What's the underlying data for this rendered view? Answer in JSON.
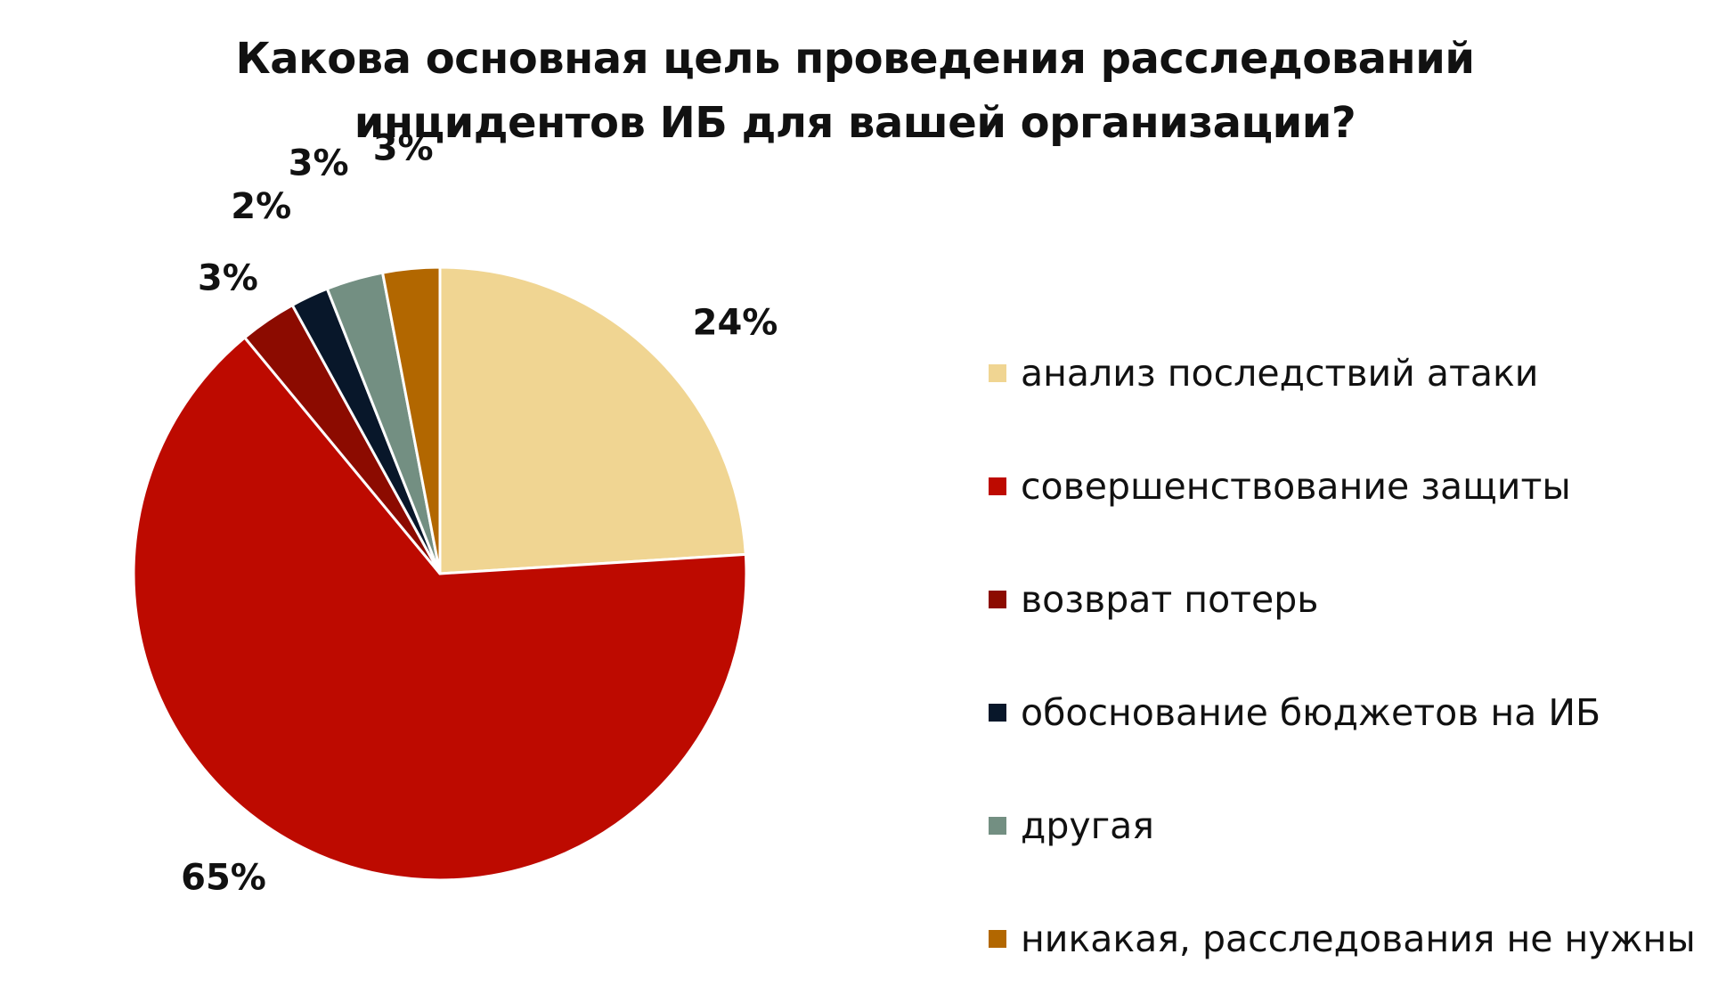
{
  "chart_data": {
    "type": "pie",
    "title_lines": [
      "Какова основная цель проведения расследований",
      "инцидентов ИБ для вашей организации?"
    ],
    "slices": [
      {
        "label": "анализ последствий атаки",
        "value": 24,
        "value_label": "24%",
        "color": "#F0D592"
      },
      {
        "label": "совершенствование защиты",
        "value": 65,
        "value_label": "65%",
        "color": "#BD0A00"
      },
      {
        "label": "возврат потерь",
        "value": 3,
        "value_label": "3%",
        "color": "#8C0B00"
      },
      {
        "label": "обоснование бюджетов на ИБ",
        "value": 2,
        "value_label": "2%",
        "color": "#08172A"
      },
      {
        "label": "другая",
        "value": 3,
        "value_label": "3%",
        "color": "#738F82"
      },
      {
        "label": "никакая, расследования не нужны",
        "value": 3,
        "value_label": "3%",
        "color": "#B26700"
      }
    ],
    "start_angle": "12 o'clock",
    "direction": "clockwise",
    "legend_position": "right",
    "data_labels": "outside"
  }
}
